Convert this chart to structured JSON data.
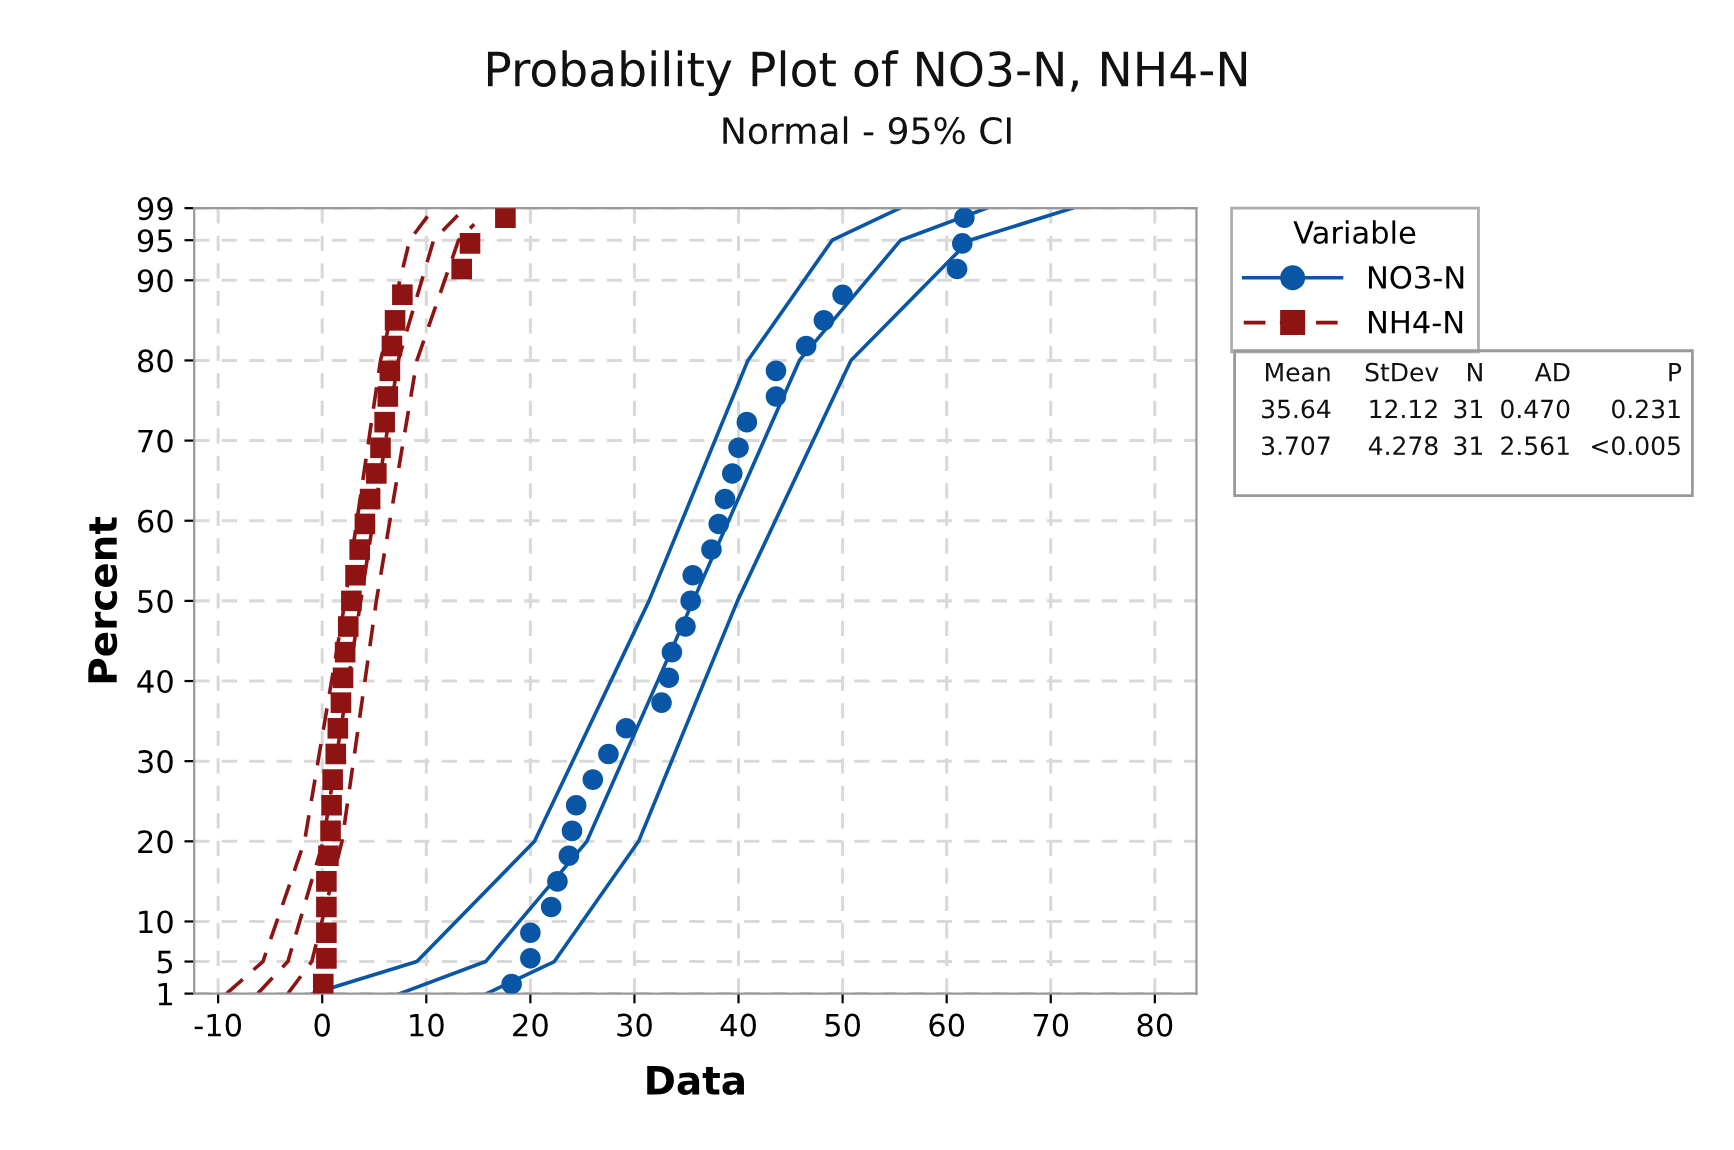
{
  "chart_data": {
    "type": "scatter",
    "title": "Probability Plot of NO3-N, NH4-N",
    "subtitle": "Normal - 95% CI",
    "xlabel": "Data",
    "ylabel": "Percent",
    "legend_title": "Variable",
    "legend": "right",
    "xlim": [
      -12.3,
      84
    ],
    "ylim": [
      1,
      99
    ],
    "xticks": [
      -10,
      0,
      10,
      20,
      30,
      40,
      50,
      60,
      70,
      80
    ],
    "yticks": [
      1,
      5,
      10,
      20,
      30,
      40,
      50,
      60,
      70,
      80,
      90,
      95,
      99
    ],
    "grid": true,
    "annotations": [
      "Mean",
      "StDev",
      "N",
      "AD",
      "P",
      "35.64",
      "12.12",
      "31",
      "0.470",
      "0.231",
      "3.707",
      "4.278",
      "31",
      "2.561",
      "<0.005"
    ],
    "series": [
      {
        "type": "line",
        "color": "#0a56a6",
        "line_style": "solid",
        "x": [
          -0.9,
          9.1,
          20.4,
          31.4,
          40.9,
          49.0,
          55.5
        ],
        "values": [
          1,
          5,
          20,
          50,
          80,
          95,
          99
        ]
      },
      {
        "type": "line",
        "color": "#0a56a6",
        "line_style": "solid",
        "x": [
          7.45,
          15.7,
          25.43,
          35.64,
          45.85,
          55.58,
          63.83
        ],
        "values": [
          1,
          5,
          20,
          50,
          80,
          95,
          99
        ]
      },
      {
        "type": "line",
        "color": "#0a56a6",
        "line_style": "solid",
        "x": [
          15.8,
          22.3,
          30.4,
          39.9,
          50.8,
          62.2,
          72.1
        ],
        "values": [
          1,
          5,
          20,
          50,
          80,
          95,
          99
        ]
      },
      {
        "type": "line",
        "color": "#8e1414",
        "line_style": "dashed",
        "x": [
          -9.2,
          -5.7,
          -1.7,
          2.2,
          5.6,
          8.4,
          10.7
        ],
        "values": [
          1,
          5,
          20,
          50,
          80,
          95,
          99
        ]
      },
      {
        "type": "line",
        "color": "#8e1414",
        "line_style": "dashed",
        "x": [
          -6.2,
          -3.3,
          0.1,
          3.7,
          7.3,
          10.7,
          13.7
        ],
        "values": [
          1,
          5,
          20,
          50,
          80,
          95,
          99
        ]
      },
      {
        "type": "line",
        "color": "#8e1414",
        "line_style": "dashed",
        "x": [
          -3.3,
          -1.0,
          1.9,
          5.2,
          9.1,
          13.1,
          14.6
        ],
        "values": [
          1,
          5,
          20,
          50,
          80,
          95,
          97
        ]
      },
      {
        "name": "NO3-N",
        "color": "#0a56a6",
        "marker": "circle",
        "line_style": "solid",
        "x": [
          18.2,
          20.0,
          20.0,
          22.0,
          22.6,
          23.7,
          24.0,
          24.4,
          26.0,
          27.5,
          29.2,
          32.6,
          33.3,
          33.6,
          34.9,
          35.4,
          35.6,
          37.4,
          38.1,
          38.7,
          39.4,
          40.0,
          40.8,
          43.6,
          43.6,
          46.5,
          48.2,
          50.0,
          61.0,
          61.5,
          61.7
        ],
        "values": [
          2.2,
          5.4,
          8.6,
          11.8,
          15.0,
          18.2,
          21.3,
          24.5,
          27.7,
          30.9,
          34.1,
          37.3,
          40.4,
          43.6,
          46.8,
          50.0,
          53.2,
          56.4,
          59.6,
          62.7,
          65.9,
          69.1,
          72.3,
          75.5,
          78.7,
          81.8,
          85.0,
          88.2,
          91.4,
          94.6,
          97.8
        ]
      },
      {
        "name": "NH4-N",
        "color": "#8e1414",
        "marker": "square",
        "line_style": "dashed",
        "x": [
          0.1,
          0.4,
          0.4,
          0.4,
          0.4,
          0.6,
          0.8,
          0.9,
          1.0,
          1.3,
          1.5,
          1.8,
          2.0,
          2.2,
          2.5,
          2.8,
          3.2,
          3.6,
          4.1,
          4.6,
          5.2,
          5.6,
          6.0,
          6.3,
          6.5,
          6.7,
          7.0,
          7.7,
          13.4,
          14.2,
          17.6
        ],
        "values": [
          2.2,
          5.4,
          8.6,
          11.8,
          15.0,
          18.2,
          21.3,
          24.5,
          27.7,
          30.9,
          34.1,
          37.3,
          40.4,
          43.6,
          46.8,
          50.0,
          53.2,
          56.4,
          59.6,
          62.7,
          65.9,
          69.1,
          72.3,
          75.5,
          78.7,
          81.8,
          85.0,
          88.2,
          91.4,
          94.6,
          97.8
        ]
      }
    ]
  }
}
